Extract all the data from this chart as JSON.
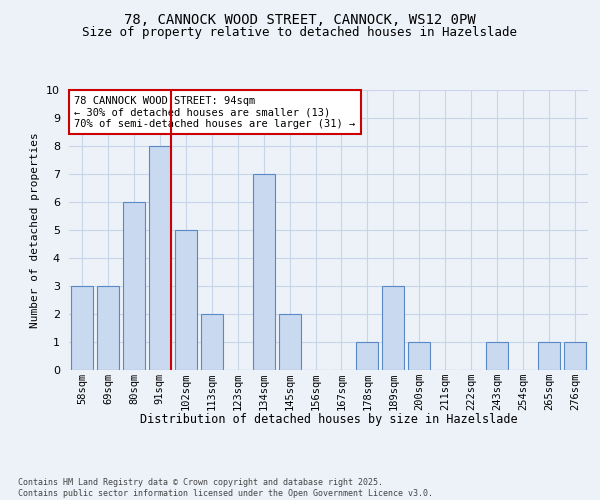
{
  "title1": "78, CANNOCK WOOD STREET, CANNOCK, WS12 0PW",
  "title2": "Size of property relative to detached houses in Hazelslade",
  "xlabel": "Distribution of detached houses by size in Hazelslade",
  "ylabel": "Number of detached properties",
  "categories": [
    "58sqm",
    "69sqm",
    "80sqm",
    "91sqm",
    "102sqm",
    "113sqm",
    "123sqm",
    "134sqm",
    "145sqm",
    "156sqm",
    "167sqm",
    "178sqm",
    "189sqm",
    "200sqm",
    "211sqm",
    "222sqm",
    "243sqm",
    "254sqm",
    "265sqm",
    "276sqm"
  ],
  "values": [
    3,
    3,
    6,
    8,
    5,
    2,
    0,
    7,
    2,
    0,
    0,
    1,
    3,
    1,
    0,
    0,
    1,
    0,
    1,
    1
  ],
  "bar_color": "#c9d9f0",
  "bar_edge_color": "#5a8ac6",
  "vline_x_index": 3,
  "vline_color": "#cc0000",
  "annotation_text": "78 CANNOCK WOOD STREET: 94sqm\n← 30% of detached houses are smaller (13)\n70% of semi-detached houses are larger (31) →",
  "annotation_box_color": "#ffffff",
  "annotation_box_edge_color": "#cc0000",
  "ylim": [
    0,
    10
  ],
  "yticks": [
    0,
    1,
    2,
    3,
    4,
    5,
    6,
    7,
    8,
    9,
    10
  ],
  "grid_color": "#c8d4e8",
  "footer": "Contains HM Land Registry data © Crown copyright and database right 2025.\nContains public sector information licensed under the Open Government Licence v3.0.",
  "bg_color": "#edf2f9",
  "plot_bg_color": "#edf2f9",
  "fig_width": 6.0,
  "fig_height": 5.0,
  "dpi": 100
}
